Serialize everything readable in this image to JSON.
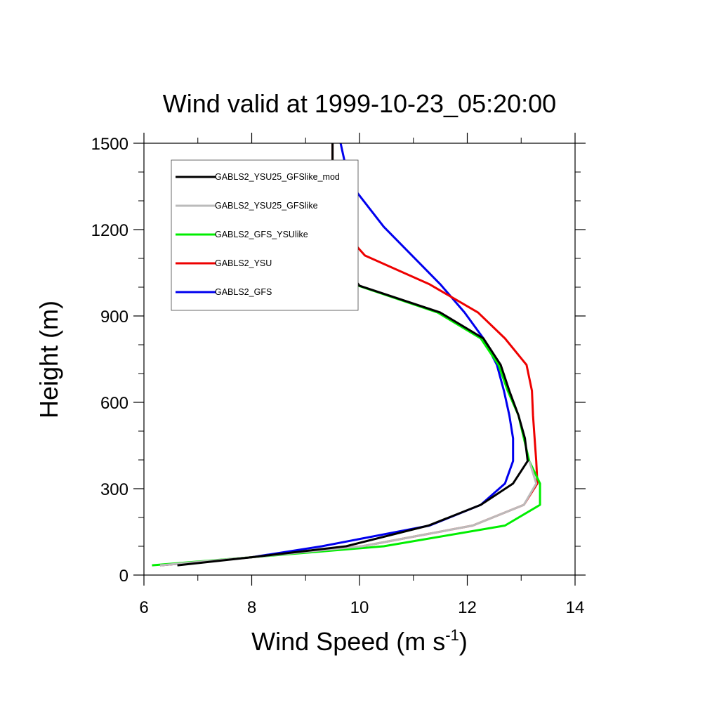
{
  "chart_data": {
    "type": "line",
    "title": "Wind valid at 1999-10-23_05:20:00",
    "xlabel": "Wind Speed (m s",
    "xlabel_sup": "-1",
    "xlabel_close": ")",
    "ylabel": "Height (m)",
    "xlim": [
      6,
      14
    ],
    "ylim": [
      0,
      1500
    ],
    "xticks": [
      6,
      8,
      10,
      12,
      14
    ],
    "yticks": [
      0,
      300,
      600,
      900,
      1200,
      1500
    ],
    "grid": false,
    "legend_position": "top-left",
    "series": [
      {
        "name": "GABLS2_YSU25_GFSlike_mod",
        "color": "#000000",
        "points": [
          [
            6.62,
            34
          ],
          [
            8.0,
            62
          ],
          [
            9.75,
            100
          ],
          [
            11.28,
            172
          ],
          [
            12.25,
            244
          ],
          [
            12.85,
            318
          ],
          [
            13.12,
            396
          ],
          [
            13.07,
            475
          ],
          [
            12.95,
            555
          ],
          [
            12.78,
            640
          ],
          [
            12.62,
            730
          ],
          [
            12.3,
            822
          ],
          [
            11.5,
            912
          ],
          [
            10.0,
            1005
          ],
          [
            9.55,
            1110
          ],
          [
            9.52,
            1210
          ],
          [
            9.5,
            1300
          ],
          [
            9.5,
            1400
          ],
          [
            9.5,
            1500
          ]
        ]
      },
      {
        "name": "GABLS2_YSU25_GFSlike",
        "color": "#bbbbbb",
        "points": [
          [
            6.3,
            34
          ],
          [
            8.0,
            62
          ],
          [
            10.05,
            100
          ],
          [
            12.1,
            172
          ],
          [
            13.05,
            244
          ],
          [
            13.28,
            318
          ],
          [
            13.15,
            396
          ]
        ]
      },
      {
        "name": "GABLS2_GFS_YSUlike",
        "color": "#00ee00",
        "points": [
          [
            6.15,
            34
          ],
          [
            8.0,
            62
          ],
          [
            10.45,
            100
          ],
          [
            12.7,
            172
          ],
          [
            13.35,
            244
          ],
          [
            13.35,
            318
          ],
          [
            13.15,
            396
          ],
          [
            13.05,
            475
          ],
          [
            12.95,
            555
          ],
          [
            12.75,
            640
          ],
          [
            12.58,
            730
          ],
          [
            12.25,
            822
          ],
          [
            11.45,
            912
          ],
          [
            9.98,
            1005
          ],
          [
            9.55,
            1110
          ]
        ]
      },
      {
        "name": "GABLS2_YSU",
        "color": "#ee0000",
        "points": [
          [
            6.3,
            34
          ],
          [
            8.0,
            62
          ],
          [
            10.05,
            100
          ],
          [
            12.1,
            172
          ],
          [
            13.05,
            244
          ],
          [
            13.3,
            318
          ],
          [
            13.28,
            396
          ],
          [
            13.25,
            475
          ],
          [
            13.22,
            555
          ],
          [
            13.2,
            640
          ],
          [
            13.1,
            730
          ],
          [
            12.7,
            822
          ],
          [
            12.2,
            912
          ],
          [
            11.3,
            1010
          ],
          [
            10.1,
            1110
          ],
          [
            9.6,
            1215
          ],
          [
            9.5,
            1300
          ],
          [
            9.5,
            1400
          ],
          [
            9.5,
            1500
          ]
        ]
      },
      {
        "name": "GABLS2_GFS",
        "color": "#0000ee",
        "points": [
          [
            6.3,
            34
          ],
          [
            8.0,
            62
          ],
          [
            9.3,
            100
          ],
          [
            11.3,
            172
          ],
          [
            12.25,
            244
          ],
          [
            12.7,
            318
          ],
          [
            12.85,
            396
          ],
          [
            12.85,
            475
          ],
          [
            12.78,
            555
          ],
          [
            12.68,
            640
          ],
          [
            12.55,
            730
          ],
          [
            12.3,
            822
          ],
          [
            11.95,
            912
          ],
          [
            11.5,
            1010
          ],
          [
            10.45,
            1210
          ],
          [
            9.95,
            1330
          ],
          [
            9.72,
            1440
          ],
          [
            9.65,
            1500
          ]
        ]
      }
    ]
  }
}
